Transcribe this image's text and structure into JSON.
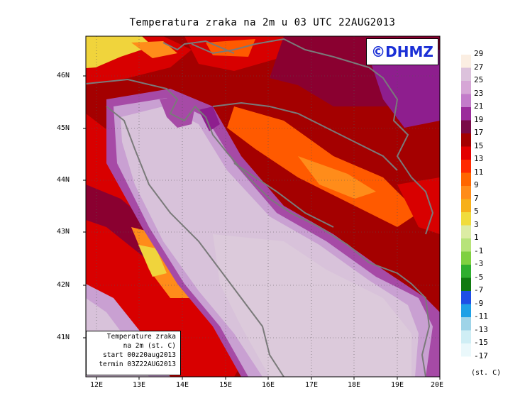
{
  "title": "Temperatura zraka na 2m u 03 UTC 22AUG2013",
  "copyright": "©DHMZ",
  "info_box": {
    "line1": "Temperature zraka",
    "line2": "na 2m (st. C)",
    "line3": "start 00z20aug2013",
    "line4": "termin 03Z22AUG2013"
  },
  "lat_labels": [
    "46N",
    "45N",
    "44N",
    "43N",
    "42N",
    "41N"
  ],
  "lon_labels": [
    "12E",
    "13E",
    "14E",
    "15E",
    "16E",
    "17E",
    "18E",
    "19E",
    "20E"
  ],
  "legend": {
    "unit": "(st. C)",
    "labels": [
      "29",
      "27",
      "25",
      "23",
      "21",
      "19",
      "17",
      "15",
      "13",
      "11",
      "9",
      "7",
      "5",
      "3",
      "1",
      "-1",
      "-3",
      "-5",
      "-7",
      "-9",
      "-11",
      "-13",
      "-15",
      "-17"
    ],
    "colors": [
      "#fbeee2",
      "#dcc2dc",
      "#d6a6d6",
      "#c37cca",
      "#9b2c9b",
      "#7a0a48",
      "#a40000",
      "#e30000",
      "#ff2a00",
      "#ff6600",
      "#ff8c1a",
      "#f7b01a",
      "#f0dc3c",
      "#dceca4",
      "#b7e37a",
      "#7fd040",
      "#2fae2f",
      "#117a11",
      "#1e4fe6",
      "#1ea0e6",
      "#9fd4e8",
      "#cfeef5",
      "#eaf8fb"
    ]
  },
  "map_colors": {
    "sea": "#d8c2da",
    "sea_light": "#dccadb",
    "coast_band": "#c9a0d2",
    "coast_purple": "#a64aa6",
    "land_dark": "#a40000",
    "land_red": "#d80000",
    "land_orange": "#ff5a00",
    "land_light_orange": "#ff8c1a",
    "land_yellow": "#f0d43c",
    "land_maroon": "#8a0030",
    "land_purple": "#8e1e8e",
    "border": "#7a7a7a"
  }
}
